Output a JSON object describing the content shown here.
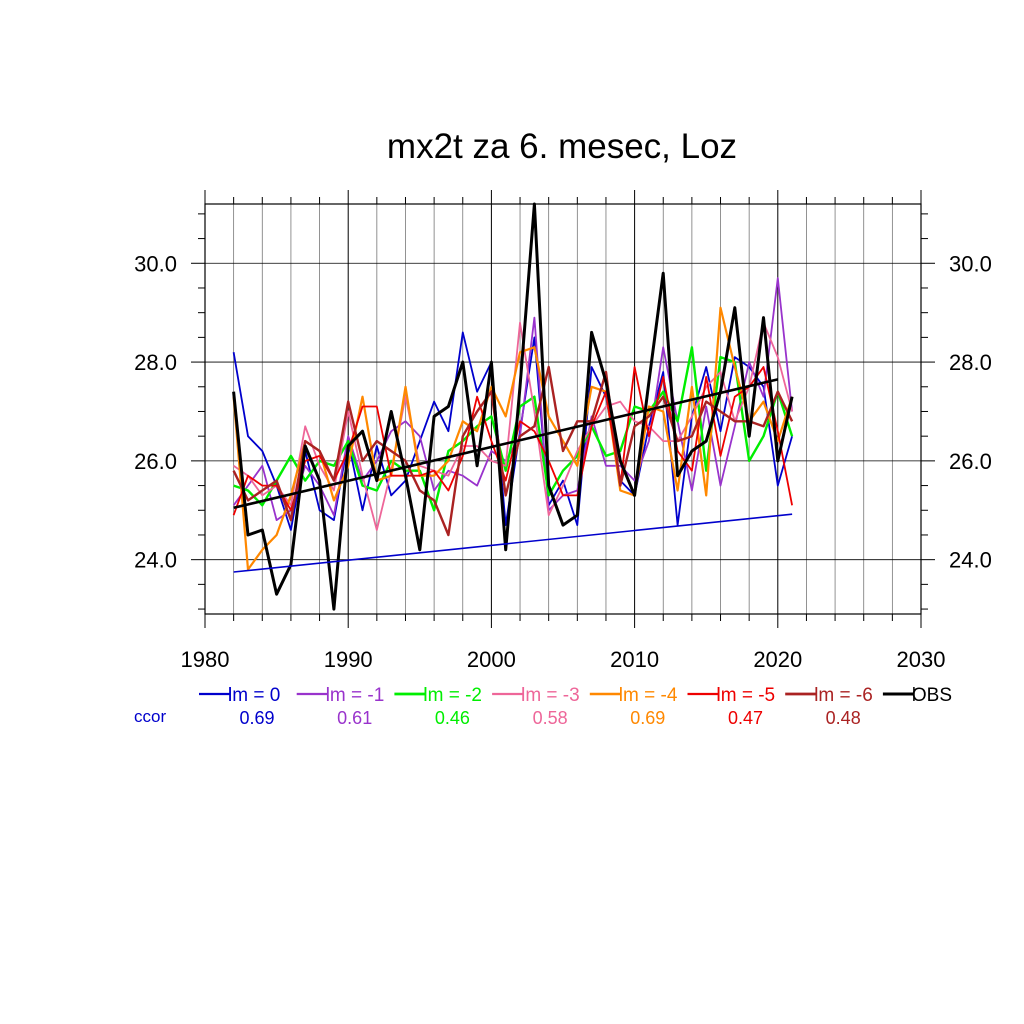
{
  "chart_data": {
    "type": "line",
    "title": "mx2t za 6. mesec, Loz",
    "xlabel": "",
    "ylabel": "",
    "xlim": [
      1980,
      2030
    ],
    "ylim": [
      22.9,
      31.2
    ],
    "x_ticks": [
      1980,
      1990,
      2000,
      2010,
      2020,
      2030
    ],
    "y_ticks": [
      24.0,
      26.0,
      28.0,
      30.0
    ],
    "grid": true,
    "legend_position": "bottom",
    "ccor_label": "ccor",
    "x": [
      1982,
      1983,
      1984,
      1985,
      1986,
      1987,
      1988,
      1989,
      1990,
      1991,
      1992,
      1993,
      1994,
      1995,
      1996,
      1997,
      1998,
      1999,
      2000,
      2001,
      2002,
      2003,
      2004,
      2005,
      2006,
      2007,
      2008,
      2009,
      2010,
      2011,
      2012,
      2013,
      2014,
      2015,
      2016,
      2017,
      2018,
      2019,
      2020,
      2021
    ],
    "series": [
      {
        "name": "lm = 0",
        "ccor": "0.69",
        "color": "#0000cc",
        "width": 1.8,
        "values": [
          28.2,
          26.5,
          26.2,
          25.5,
          24.6,
          26.2,
          25.0,
          24.8,
          26.4,
          25.0,
          26.3,
          25.3,
          25.6,
          26.4,
          27.2,
          26.6,
          28.6,
          27.4,
          28.0,
          24.7,
          26.6,
          28.5,
          25.1,
          25.6,
          24.7,
          27.9,
          27.3,
          25.6,
          25.3,
          26.7,
          27.8,
          24.7,
          26.9,
          27.9,
          26.6,
          28.1,
          27.9,
          27.5,
          25.5,
          26.5
        ]
      },
      {
        "name": "lm = -1",
        "ccor": "0.61",
        "color": "#9933cc",
        "width": 1.8,
        "values": [
          25.1,
          25.5,
          25.9,
          24.8,
          25.0,
          25.9,
          25.5,
          24.9,
          26.5,
          25.6,
          26.0,
          26.6,
          26.8,
          26.5,
          25.4,
          25.8,
          25.7,
          25.5,
          26.2,
          26.0,
          26.5,
          28.9,
          25.0,
          25.3,
          25.4,
          26.9,
          25.9,
          25.9,
          25.6,
          26.4,
          28.3,
          26.8,
          25.4,
          27.1,
          25.5,
          26.7,
          28.0,
          27.3,
          29.7,
          27.0
        ]
      },
      {
        "name": "lm = -2",
        "ccor": "0.46",
        "color": "#00ee00",
        "width": 2.4,
        "values": [
          25.5,
          25.4,
          25.1,
          25.6,
          26.1,
          25.6,
          26.0,
          25.9,
          26.4,
          25.5,
          25.4,
          26.0,
          25.8,
          25.8,
          25.0,
          26.2,
          26.4,
          26.7,
          26.9,
          25.8,
          27.1,
          27.3,
          25.3,
          25.8,
          26.1,
          26.7,
          26.1,
          26.2,
          27.1,
          27.0,
          27.4,
          26.8,
          28.3,
          25.8,
          28.1,
          28.0,
          26.0,
          26.5,
          27.4,
          26.5
        ]
      },
      {
        "name": "lm = -3",
        "ccor": "0.58",
        "color": "#ee6699",
        "width": 1.8,
        "values": [
          25.9,
          25.7,
          25.3,
          25.5,
          25.1,
          26.7,
          25.9,
          25.4,
          27.0,
          25.7,
          24.6,
          25.8,
          27.3,
          25.9,
          25.8,
          25.7,
          26.3,
          26.3,
          26.0,
          25.9,
          28.8,
          27.0,
          24.9,
          25.5,
          26.2,
          26.7,
          27.1,
          27.2,
          26.8,
          26.7,
          26.4,
          26.4,
          26.9,
          27.5,
          27.8,
          26.8,
          27.5,
          28.8,
          28.1,
          27.0
        ]
      },
      {
        "name": "lm = -4",
        "ccor": "0.69",
        "color": "#ff8800",
        "width": 2.2,
        "values": [
          27.3,
          23.8,
          24.2,
          24.5,
          25.3,
          26.4,
          26.2,
          25.2,
          25.9,
          27.3,
          25.6,
          25.7,
          27.5,
          25.7,
          25.7,
          26.0,
          26.8,
          26.6,
          27.5,
          26.9,
          28.2,
          28.3,
          26.9,
          26.4,
          25.9,
          27.5,
          27.4,
          25.4,
          25.3,
          27.1,
          27.0,
          25.4,
          27.5,
          25.3,
          29.1,
          27.9,
          26.8,
          27.2,
          26.4,
          27.3
        ]
      },
      {
        "name": "lm = -5",
        "ccor": "0.47",
        "color": "#ee0000",
        "width": 1.8,
        "values": [
          24.9,
          25.7,
          25.5,
          25.5,
          25.0,
          26.0,
          26.1,
          25.6,
          26.2,
          27.1,
          27.1,
          25.7,
          25.7,
          25.7,
          25.8,
          25.4,
          26.1,
          27.3,
          26.4,
          25.6,
          26.8,
          26.6,
          26.0,
          25.3,
          25.3,
          26.7,
          27.4,
          25.5,
          27.9,
          26.5,
          27.7,
          26.2,
          25.8,
          27.7,
          26.1,
          27.3,
          27.5,
          27.9,
          26.6,
          25.1
        ]
      },
      {
        "name": "lm = -6",
        "ccor": "0.48",
        "color": "#aa2222",
        "width": 2.4,
        "values": [
          25.8,
          25.2,
          25.4,
          25.6,
          24.8,
          26.4,
          26.2,
          25.6,
          27.2,
          26.0,
          26.4,
          26.2,
          26.0,
          25.4,
          25.2,
          24.5,
          26.5,
          27.0,
          27.4,
          25.3,
          26.5,
          26.7,
          27.9,
          26.2,
          26.8,
          26.8,
          27.8,
          25.5,
          26.7,
          26.9,
          27.3,
          26.4,
          26.5,
          27.2,
          27.0,
          26.8,
          26.8,
          26.7,
          27.4,
          26.8
        ]
      },
      {
        "name": "OBS",
        "ccor": "",
        "color": "#000000",
        "width": 3.0,
        "values": [
          27.4,
          24.5,
          24.6,
          23.3,
          23.9,
          26.3,
          25.6,
          23.0,
          26.3,
          26.6,
          25.6,
          27.0,
          25.7,
          24.2,
          26.9,
          27.1,
          28.0,
          25.9,
          28.0,
          24.2,
          27.5,
          31.2,
          25.5,
          24.7,
          24.9,
          28.6,
          27.6,
          26.0,
          25.3,
          27.6,
          29.8,
          25.7,
          26.2,
          26.4,
          27.4,
          29.1,
          26.5,
          28.9,
          26.0,
          27.3
        ]
      }
    ],
    "trend_lines": [
      {
        "series": "OBS",
        "color": "#000000",
        "width": 2.6,
        "x": [
          1982,
          2020
        ],
        "y": [
          25.05,
          27.65
        ]
      },
      {
        "series": "lm = 0",
        "color": "#0000cc",
        "width": 1.6,
        "x": [
          1982,
          2021
        ],
        "y": [
          23.75,
          24.92
        ]
      }
    ]
  }
}
